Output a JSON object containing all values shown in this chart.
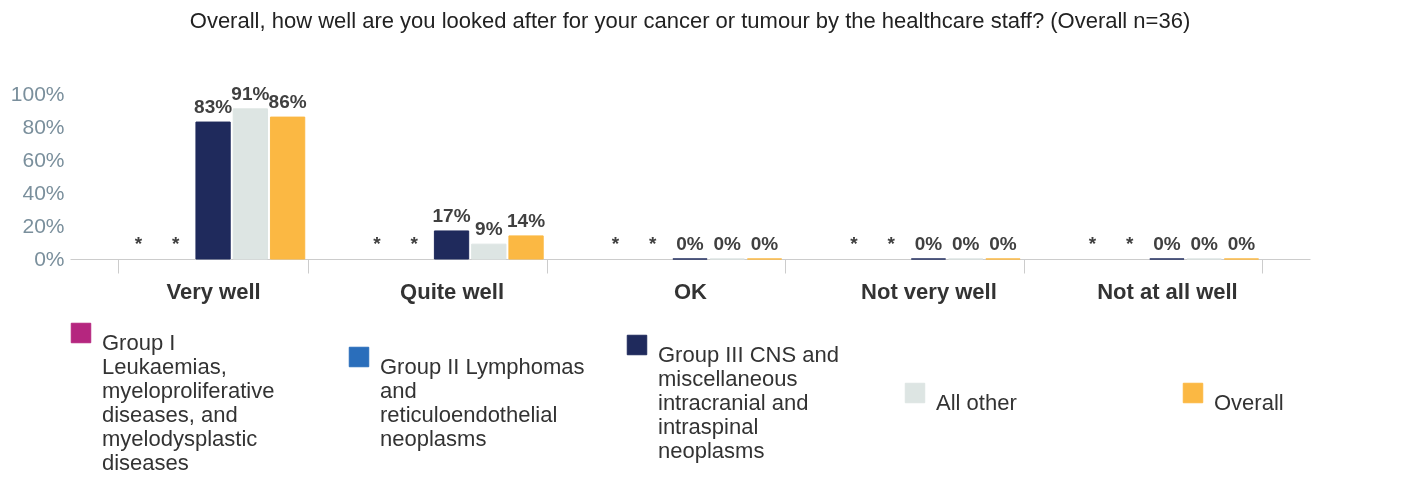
{
  "chart_data": {
    "type": "bar",
    "title": "Overall, how well are you looked after for your cancer or tumour by the healthcare staff? (Overall n=36)",
    "categories": [
      "Very well",
      "Quite well",
      "OK",
      "Not very well",
      "Not at all well"
    ],
    "series": [
      {
        "name": "Group I Leukaemias, myeloproliferative diseases, and myelodysplastic diseases",
        "color": "#b5267f",
        "values": [
          null,
          null,
          null,
          null,
          null
        ],
        "value_labels": [
          "*",
          "*",
          "*",
          "*",
          "*"
        ]
      },
      {
        "name": "Group II Lymphomas and reticuloendothelial neoplasms",
        "color": "#2a6ebb",
        "values": [
          null,
          null,
          null,
          null,
          null
        ],
        "value_labels": [
          "*",
          "*",
          "*",
          "*",
          "*"
        ]
      },
      {
        "name": "Group III CNS and miscellaneous intracranial and intraspinal neoplasms",
        "color": "#1f2a5c",
        "values": [
          83,
          17,
          0,
          0,
          0
        ],
        "value_labels": [
          "83%",
          "17%",
          "0%",
          "0%",
          "0%"
        ]
      },
      {
        "name": "All other",
        "color": "#dde5e3",
        "values": [
          91,
          9,
          0,
          0,
          0
        ],
        "value_labels": [
          "91%",
          "9%",
          "0%",
          "0%",
          "0%"
        ]
      },
      {
        "name": "Overall",
        "color": "#fbb843",
        "values": [
          86,
          14,
          0,
          0,
          0
        ],
        "value_labels": [
          "86%",
          "14%",
          "0%",
          "0%",
          "0%"
        ]
      }
    ],
    "ylim": [
      0,
      100
    ],
    "yticks": [
      {
        "value": 0,
        "label": "0%"
      },
      {
        "value": 20,
        "label": "20%"
      },
      {
        "value": 40,
        "label": "40%"
      },
      {
        "value": 60,
        "label": "60%"
      },
      {
        "value": 80,
        "label": "80%"
      },
      {
        "value": 100,
        "label": "100%"
      }
    ],
    "grid": false,
    "legend": "bottom"
  }
}
